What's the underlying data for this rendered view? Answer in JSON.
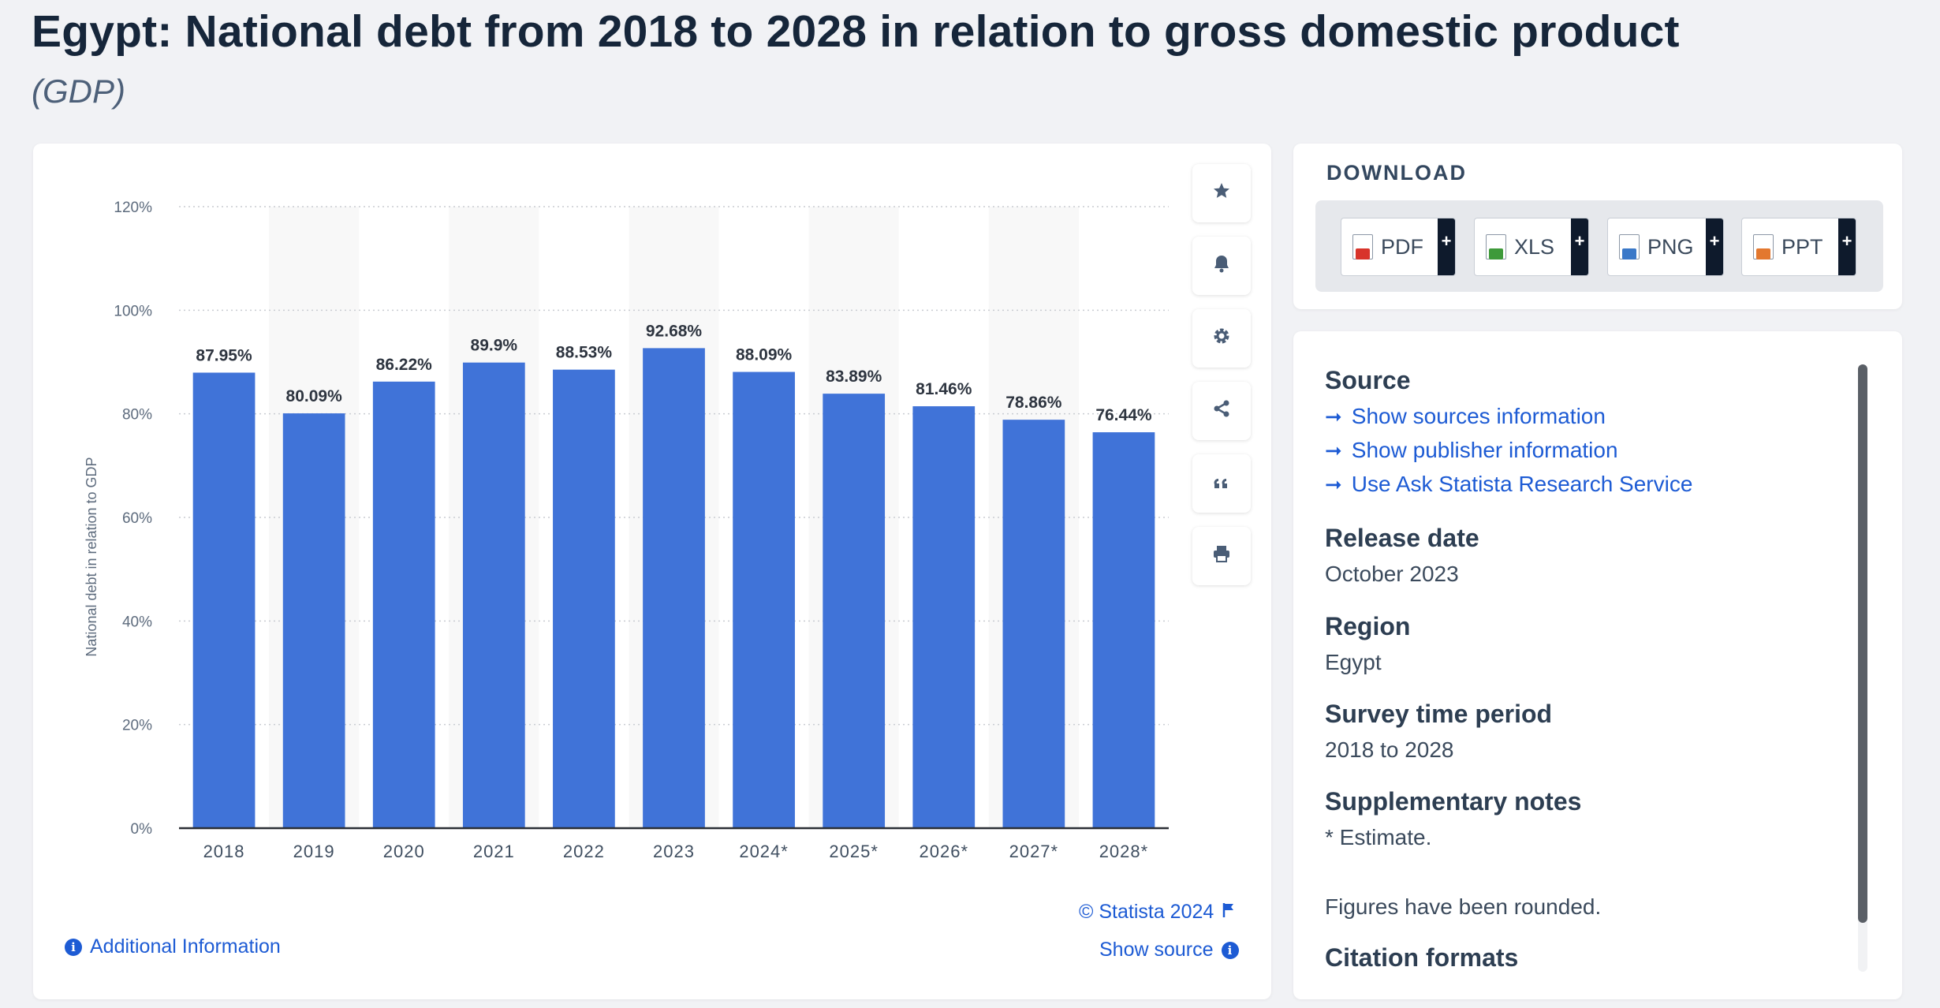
{
  "header": {
    "title": "Egypt: National debt from 2018 to 2028 in relation to gross domestic product",
    "subtitle": "(GDP)"
  },
  "chart_data": {
    "type": "bar",
    "categories": [
      "2018",
      "2019",
      "2020",
      "2021",
      "2022",
      "2023",
      "2024*",
      "2025*",
      "2026*",
      "2027*",
      "2028*"
    ],
    "values": [
      87.95,
      80.09,
      86.22,
      89.9,
      88.53,
      92.68,
      88.09,
      83.89,
      81.46,
      78.86,
      76.44
    ],
    "value_labels": [
      "87.95%",
      "80.09%",
      "86.22%",
      "89.9%",
      "88.53%",
      "92.68%",
      "88.09%",
      "83.89%",
      "81.46%",
      "78.86%",
      "76.44%"
    ],
    "ylabel": "National debt in relation to GDP",
    "xlabel": "",
    "ylim": [
      0,
      120
    ],
    "yticks": [
      0,
      20,
      40,
      60,
      80,
      100,
      120
    ],
    "ytick_labels": [
      "0%",
      "20%",
      "40%",
      "60%",
      "80%",
      "100%",
      "120%"
    ],
    "grid": "horizontal-dotted",
    "legend": "none",
    "bar_color": "#4073d8"
  },
  "chart_tools": [
    {
      "name": "favorite",
      "icon": "star-icon",
      "glyph": "★"
    },
    {
      "name": "notification",
      "icon": "bell-icon",
      "glyph": "🔔"
    },
    {
      "name": "settings",
      "icon": "gear-icon",
      "glyph": "⚙"
    },
    {
      "name": "share",
      "icon": "share-icon",
      "glyph": "share"
    },
    {
      "name": "cite",
      "icon": "quote-icon",
      "glyph": "❝"
    },
    {
      "name": "print",
      "icon": "printer-icon",
      "glyph": "print"
    }
  ],
  "chart_footer": {
    "copyright": "© Statista 2024",
    "show_source": "Show source",
    "additional_info": "Additional Information"
  },
  "download": {
    "heading": "DOWNLOAD",
    "buttons": [
      {
        "label": "PDF",
        "plus": "+",
        "color": "#d8342b"
      },
      {
        "label": "XLS",
        "plus": "+",
        "color": "#3e9a3a"
      },
      {
        "label": "PNG",
        "plus": "+",
        "color": "#3a78c8"
      },
      {
        "label": "PPT",
        "plus": "+",
        "color": "#e3782f"
      }
    ]
  },
  "info": {
    "source_heading": "Source",
    "links": [
      "Show sources information",
      "Show publisher information",
      "Use Ask Statista Research Service"
    ],
    "release_heading": "Release date",
    "release_value": "October 2023",
    "region_heading": "Region",
    "region_value": "Egypt",
    "survey_heading": "Survey time period",
    "survey_value": "2018 to 2028",
    "notes_heading": "Supplementary notes",
    "notes_value_1": "* Estimate.",
    "notes_value_2": "Figures have been rounded.",
    "citation_heading": "Citation formats"
  }
}
